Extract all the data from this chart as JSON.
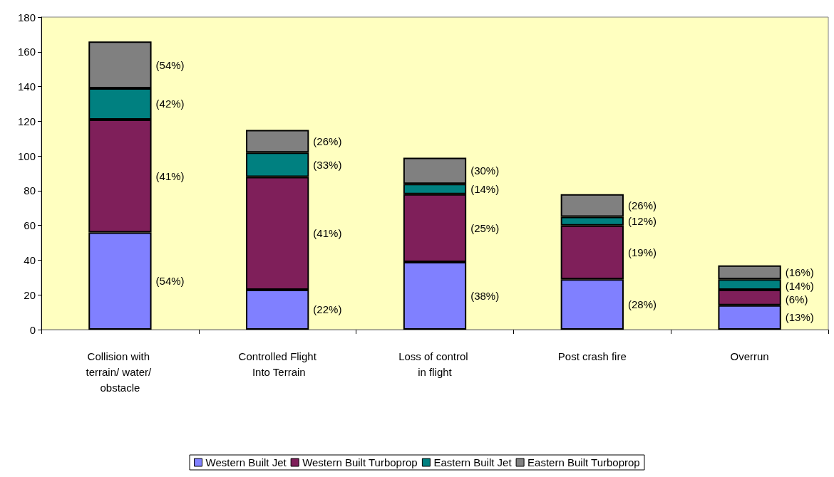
{
  "chart_data": {
    "type": "bar",
    "stacked": true,
    "categories": [
      "Collision with terrain/ water/ obstacle",
      "Controlled Flight Into Terrain",
      "Loss of control in flight",
      "Post crash fire",
      "Overrun"
    ],
    "series": [
      {
        "name": "Western Built Jet",
        "color": "#8080ff",
        "values": [
          56,
          23,
          39,
          29,
          14
        ]
      },
      {
        "name": "Western Built Turboprop",
        "color": "#7f1f5a",
        "values": [
          65,
          65,
          39,
          31,
          9
        ]
      },
      {
        "name": "Eastern Built Jet",
        "color": "#008080",
        "values": [
          18,
          14,
          6,
          5,
          6
        ]
      },
      {
        "name": "Eastern Built Turboprop",
        "color": "#808080",
        "values": [
          27,
          13,
          15,
          13,
          8
        ]
      }
    ],
    "annotations": [
      "(54%)",
      "(42%)",
      "(41%)",
      "(54%)",
      "(26%)",
      "(33%)",
      "(41%)",
      "(22%)",
      "(30%)",
      "(14%)",
      "(25%)",
      "(38%)",
      "(26%)",
      "(12%)",
      "(19%)",
      "(28%)",
      "(16%)",
      "(14%)",
      "(6%)",
      "(13%)"
    ],
    "ylim": [
      0,
      180
    ],
    "yticks": [
      0,
      20,
      40,
      60,
      80,
      100,
      120,
      140,
      160,
      180
    ],
    "grid": false,
    "legend": "bottom"
  }
}
